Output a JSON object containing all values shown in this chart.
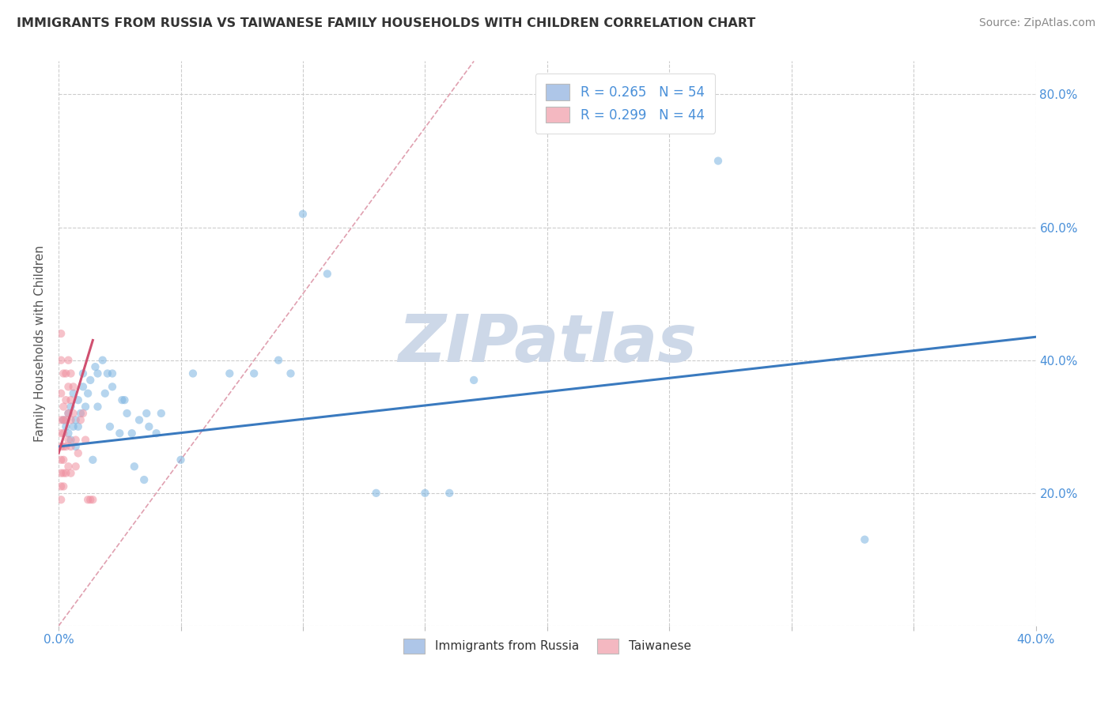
{
  "title": "IMMIGRANTS FROM RUSSIA VS TAIWANESE FAMILY HOUSEHOLDS WITH CHILDREN CORRELATION CHART",
  "source": "Source: ZipAtlas.com",
  "ylabel": "Family Households with Children",
  "xlim": [
    0.0,
    0.4
  ],
  "ylim": [
    0.0,
    0.85
  ],
  "x_ticks": [
    0.0,
    0.05,
    0.1,
    0.15,
    0.2,
    0.25,
    0.3,
    0.35,
    0.4
  ],
  "y_ticks": [
    0.0,
    0.2,
    0.4,
    0.6,
    0.8
  ],
  "watermark_text": "ZIPatlas",
  "legend_entries": [
    {
      "label": "R = 0.265   N = 54",
      "color": "#aec6e8"
    },
    {
      "label": "R = 0.299   N = 44",
      "color": "#f4b8c1"
    }
  ],
  "legend_bottom": [
    {
      "label": "Immigrants from Russia",
      "color": "#aec6e8"
    },
    {
      "label": "Taiwanese",
      "color": "#f4b8c1"
    }
  ],
  "blue_scatter": [
    [
      0.002,
      0.31
    ],
    [
      0.003,
      0.3
    ],
    [
      0.004,
      0.29
    ],
    [
      0.004,
      0.32
    ],
    [
      0.005,
      0.33
    ],
    [
      0.005,
      0.28
    ],
    [
      0.006,
      0.3
    ],
    [
      0.006,
      0.35
    ],
    [
      0.007,
      0.31
    ],
    [
      0.007,
      0.27
    ],
    [
      0.008,
      0.3
    ],
    [
      0.008,
      0.34
    ],
    [
      0.009,
      0.32
    ],
    [
      0.01,
      0.36
    ],
    [
      0.01,
      0.38
    ],
    [
      0.011,
      0.33
    ],
    [
      0.012,
      0.35
    ],
    [
      0.013,
      0.37
    ],
    [
      0.014,
      0.25
    ],
    [
      0.015,
      0.39
    ],
    [
      0.016,
      0.38
    ],
    [
      0.016,
      0.33
    ],
    [
      0.018,
      0.4
    ],
    [
      0.019,
      0.35
    ],
    [
      0.02,
      0.38
    ],
    [
      0.021,
      0.3
    ],
    [
      0.022,
      0.36
    ],
    [
      0.022,
      0.38
    ],
    [
      0.025,
      0.29
    ],
    [
      0.026,
      0.34
    ],
    [
      0.027,
      0.34
    ],
    [
      0.028,
      0.32
    ],
    [
      0.03,
      0.29
    ],
    [
      0.031,
      0.24
    ],
    [
      0.033,
      0.31
    ],
    [
      0.035,
      0.22
    ],
    [
      0.036,
      0.32
    ],
    [
      0.037,
      0.3
    ],
    [
      0.04,
      0.29
    ],
    [
      0.042,
      0.32
    ],
    [
      0.05,
      0.25
    ],
    [
      0.055,
      0.38
    ],
    [
      0.07,
      0.38
    ],
    [
      0.08,
      0.38
    ],
    [
      0.09,
      0.4
    ],
    [
      0.095,
      0.38
    ],
    [
      0.1,
      0.62
    ],
    [
      0.11,
      0.53
    ],
    [
      0.13,
      0.2
    ],
    [
      0.15,
      0.2
    ],
    [
      0.16,
      0.2
    ],
    [
      0.17,
      0.37
    ],
    [
      0.27,
      0.7
    ],
    [
      0.33,
      0.13
    ]
  ],
  "pink_scatter": [
    [
      0.001,
      0.44
    ],
    [
      0.001,
      0.4
    ],
    [
      0.001,
      0.35
    ],
    [
      0.001,
      0.31
    ],
    [
      0.001,
      0.29
    ],
    [
      0.001,
      0.27
    ],
    [
      0.001,
      0.25
    ],
    [
      0.001,
      0.23
    ],
    [
      0.001,
      0.21
    ],
    [
      0.001,
      0.19
    ],
    [
      0.002,
      0.38
    ],
    [
      0.002,
      0.33
    ],
    [
      0.002,
      0.31
    ],
    [
      0.002,
      0.29
    ],
    [
      0.002,
      0.27
    ],
    [
      0.002,
      0.25
    ],
    [
      0.002,
      0.23
    ],
    [
      0.002,
      0.21
    ],
    [
      0.003,
      0.38
    ],
    [
      0.003,
      0.34
    ],
    [
      0.003,
      0.31
    ],
    [
      0.003,
      0.27
    ],
    [
      0.003,
      0.23
    ],
    [
      0.004,
      0.4
    ],
    [
      0.004,
      0.36
    ],
    [
      0.004,
      0.32
    ],
    [
      0.004,
      0.28
    ],
    [
      0.004,
      0.24
    ],
    [
      0.005,
      0.38
    ],
    [
      0.005,
      0.34
    ],
    [
      0.005,
      0.31
    ],
    [
      0.005,
      0.27
    ],
    [
      0.005,
      0.23
    ],
    [
      0.006,
      0.36
    ],
    [
      0.006,
      0.32
    ],
    [
      0.007,
      0.28
    ],
    [
      0.007,
      0.24
    ],
    [
      0.008,
      0.26
    ],
    [
      0.009,
      0.31
    ],
    [
      0.01,
      0.32
    ],
    [
      0.011,
      0.28
    ],
    [
      0.012,
      0.19
    ],
    [
      0.013,
      0.19
    ],
    [
      0.014,
      0.19
    ]
  ],
  "blue_line_x": [
    0.0,
    0.4
  ],
  "blue_line_y": [
    0.27,
    0.435
  ],
  "pink_solid_line_x": [
    0.0,
    0.014
  ],
  "pink_solid_line_y": [
    0.26,
    0.43
  ],
  "pink_dash_line_x": [
    0.0,
    0.17
  ],
  "pink_dash_line_y": [
    0.0,
    0.85
  ],
  "scatter_color_blue": "#7ab3e0",
  "scatter_color_pink": "#f090a0",
  "line_color_blue": "#3a7abf",
  "line_color_pink_solid": "#d05070",
  "line_color_pink_dash": "#e0a0b0",
  "dot_size": 55,
  "dot_alpha": 0.55,
  "background_color": "#ffffff",
  "grid_color": "#cccccc",
  "title_color": "#333333",
  "axis_color": "#4a90d9",
  "watermark_color": "#cdd8e8",
  "watermark_fontsize": 60
}
